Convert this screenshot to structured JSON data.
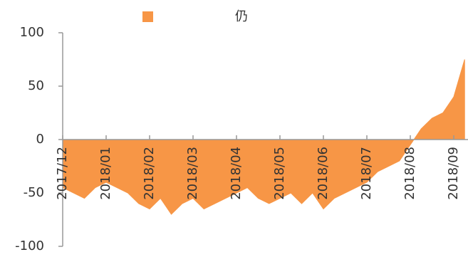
{
  "chart_data": {
    "type": "area",
    "categories": [
      "2017/12",
      null,
      null,
      null,
      "2018/01",
      null,
      null,
      null,
      "2018/02",
      null,
      null,
      null,
      "2018/03",
      null,
      null,
      null,
      "2018/04",
      null,
      null,
      null,
      "2018/05",
      null,
      null,
      null,
      "2018/06",
      null,
      null,
      null,
      "2018/07",
      null,
      null,
      null,
      "2018/08",
      null,
      null,
      null,
      "2018/09",
      null
    ],
    "series": [
      {
        "name": "仍",
        "color": "#f79646",
        "values": [
          -45,
          -50,
          -55,
          -45,
          -40,
          -45,
          -50,
          -60,
          -65,
          -55,
          -70,
          -60,
          -55,
          -65,
          -60,
          -55,
          -50,
          -45,
          -55,
          -60,
          -55,
          -50,
          -60,
          -50,
          -65,
          -55,
          -50,
          -45,
          -40,
          -30,
          -25,
          -20,
          -5,
          10,
          20,
          25,
          40,
          75
        ]
      }
    ],
    "ylim": [
      -100,
      100
    ],
    "yticks": [
      -100,
      -50,
      0,
      50,
      100
    ]
  }
}
